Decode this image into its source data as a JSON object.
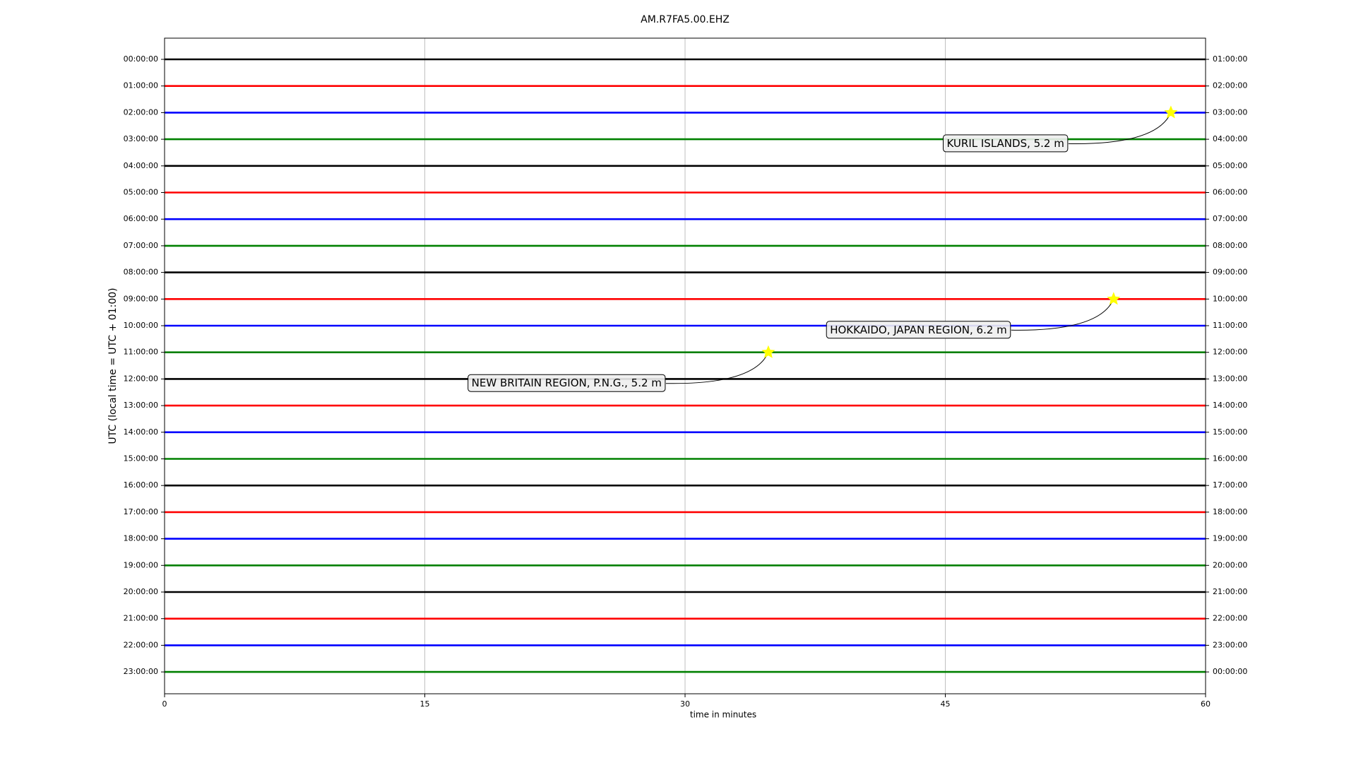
{
  "chart_data": {
    "type": "dayplot",
    "title": "AM.R7FA5.00.EHZ",
    "xlabel": "time in minutes",
    "ylabel": "UTC (local time = UTC + 01:00)",
    "xlim": [
      0,
      60
    ],
    "xticks": [
      0,
      15,
      30,
      45,
      60
    ],
    "grid": true,
    "colors": [
      "#000000",
      "#ff0000",
      "#0000ff",
      "#008000"
    ],
    "categories": [
      "00:00:00",
      "01:00:00",
      "02:00:00",
      "03:00:00",
      "04:00:00",
      "05:00:00",
      "06:00:00",
      "07:00:00",
      "08:00:00",
      "09:00:00",
      "10:00:00",
      "11:00:00",
      "12:00:00",
      "13:00:00",
      "14:00:00",
      "15:00:00",
      "16:00:00",
      "17:00:00",
      "18:00:00",
      "19:00:00",
      "20:00:00",
      "21:00:00",
      "22:00:00",
      "23:00:00"
    ],
    "right_categories": [
      "01:00:00",
      "02:00:00",
      "03:00:00",
      "04:00:00",
      "05:00:00",
      "06:00:00",
      "07:00:00",
      "08:00:00",
      "09:00:00",
      "10:00:00",
      "11:00:00",
      "12:00:00",
      "13:00:00",
      "14:00:00",
      "15:00:00",
      "16:00:00",
      "17:00:00",
      "18:00:00",
      "19:00:00",
      "20:00:00",
      "21:00:00",
      "22:00:00",
      "23:00:00",
      "00:00:00"
    ],
    "events": [
      {
        "label": "KURIL ISLANDS, 5.2 m",
        "time": "02:00:00",
        "minute": 58
      },
      {
        "label": "HOKKAIDO, JAPAN REGION, 6.2 m",
        "time": "09:00:00",
        "minute": 54.7
      },
      {
        "label": "NEW BRITAIN REGION, P.N.G., 5.2 m",
        "time": "11:00:00",
        "minute": 34.8
      }
    ],
    "event_color": "#ffff00"
  }
}
